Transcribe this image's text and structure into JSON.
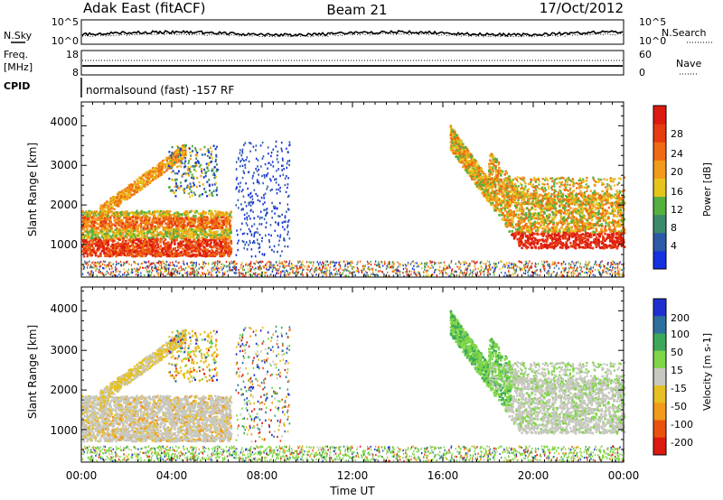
{
  "header": {
    "station": "Adak East (fitACF)",
    "beam": "Beam 21",
    "date": "17/Oct/2012"
  },
  "top_panel": {
    "label_left": "N.Sky",
    "label_right": "N.Search",
    "ticks_left": [
      "10^5",
      "10^0"
    ],
    "ticks_right": [
      "10^5",
      "10^0"
    ]
  },
  "freq_panel": {
    "label_left_1": "Freq.",
    "label_left_2": "[MHz]",
    "label_right": "Nave",
    "ticks_left": [
      "18",
      "8"
    ],
    "ticks_right": [
      "60",
      "0"
    ]
  },
  "cpid": {
    "label": "CPID",
    "mode": "normalsound (fast) -157 RF"
  },
  "colors": {
    "power_scale": [
      "#1530e0",
      "#2c5aa8",
      "#3d8a6a",
      "#55b040",
      "#e6c51a",
      "#f29a1a",
      "#ef6a12",
      "#e83a10",
      "#dd1a10"
    ],
    "velocity_scale": [
      "#2030d0",
      "#2e6f9e",
      "#3ea85a",
      "#7fd648",
      "#c8c8c0",
      "#e6c020",
      "#f29a1a",
      "#ea5010",
      "#dd1a10"
    ]
  },
  "chart_data": [
    {
      "type": "heatmap",
      "title": "Power",
      "xlabel": "",
      "ylabel": "Slant Range [km]",
      "x_ticks": [
        "00:00",
        "04:00",
        "08:00",
        "12:00",
        "16:00",
        "20:00",
        "00:00"
      ],
      "y_ticks": [
        "1000",
        "2000",
        "3000",
        "4000"
      ],
      "xlim": [
        0,
        24
      ],
      "ylim": [
        180,
        4600
      ],
      "colorbar": {
        "label": "Power [dB]",
        "ticks": [
          "4",
          "8",
          "12",
          "16",
          "20",
          "24",
          "28"
        ],
        "range": [
          0,
          30
        ]
      }
    },
    {
      "type": "heatmap",
      "title": "Velocity",
      "xlabel": "Time UT",
      "ylabel": "Slant Range [km]",
      "x_ticks": [
        "00:00",
        "04:00",
        "08:00",
        "12:00",
        "16:00",
        "20:00",
        "00:00"
      ],
      "y_ticks": [
        "1000",
        "2000",
        "3000",
        "4000"
      ],
      "xlim": [
        0,
        24
      ],
      "ylim": [
        180,
        4600
      ],
      "colorbar": {
        "label": "Velocity [m s-1]",
        "ticks": [
          "200",
          "100",
          "50",
          "15",
          "-15",
          "-50",
          "-100",
          "-200"
        ],
        "range": [
          -250,
          250
        ]
      }
    }
  ]
}
